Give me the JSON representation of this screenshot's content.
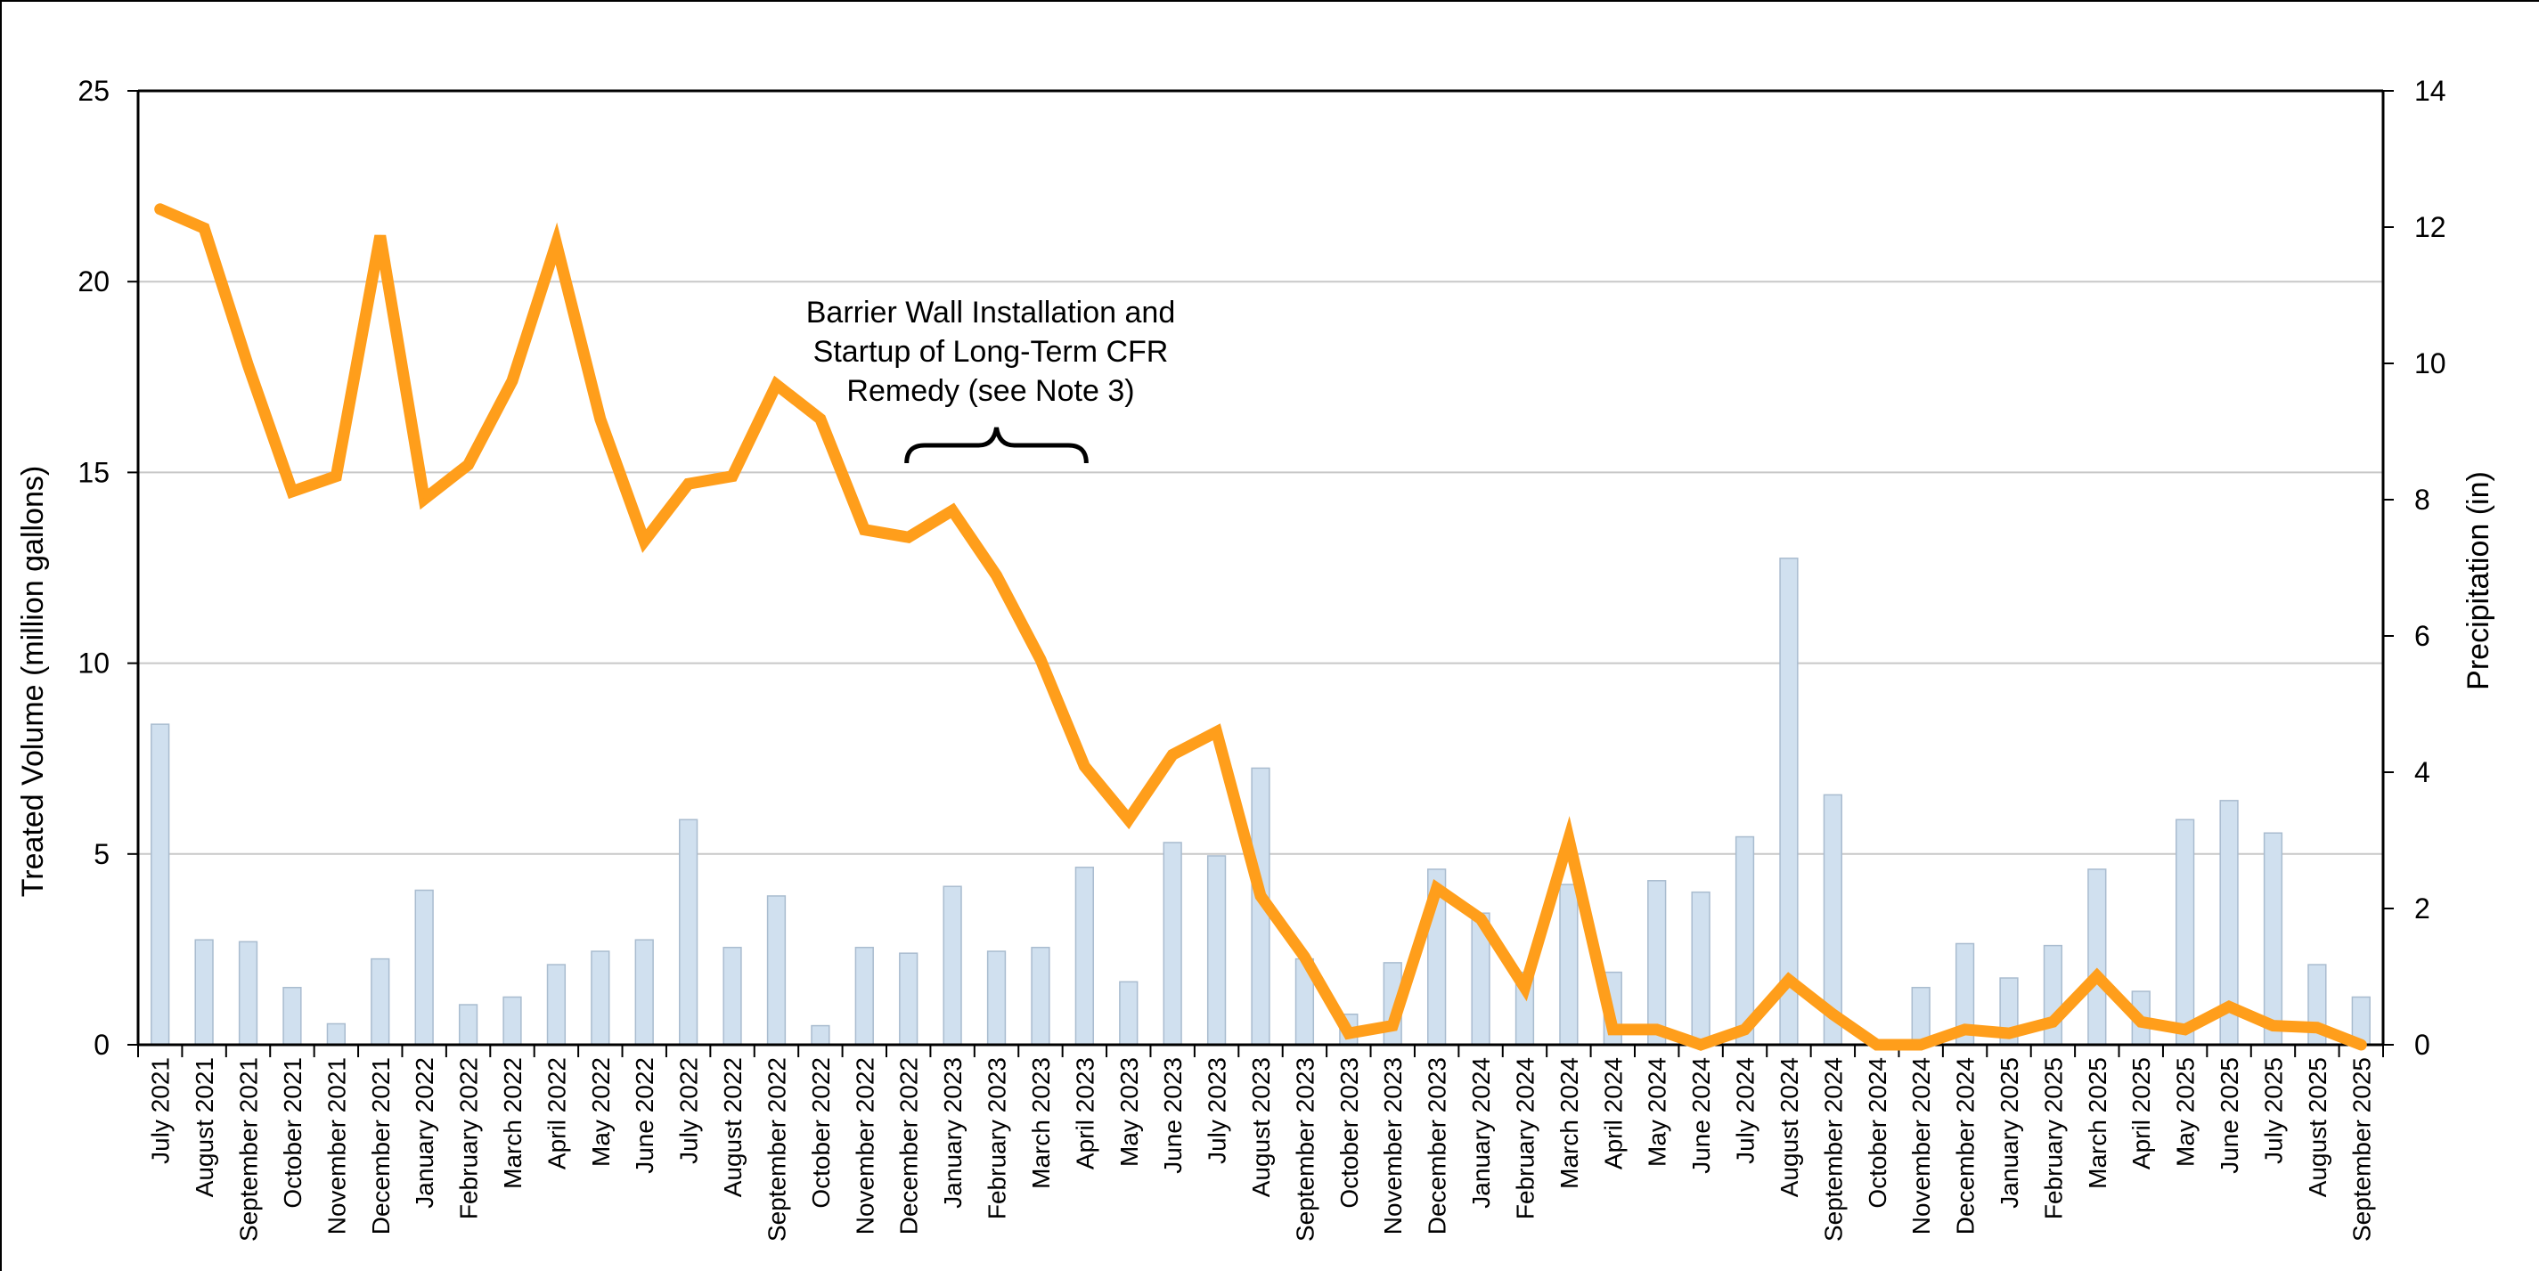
{
  "chart_data": {
    "type": "bar+line",
    "title": "",
    "ylabel": "Treated Volume (million gallons)",
    "y2label": "Precipitation (in)",
    "ylim": [
      0,
      25
    ],
    "y2lim": [
      0,
      14
    ],
    "yticks": [
      "0",
      "5",
      "10",
      "15",
      "20",
      "25"
    ],
    "y2ticks": [
      "0",
      "2",
      "4",
      "6",
      "8",
      "10",
      "12",
      "14"
    ],
    "grid": true,
    "categories": [
      "July 2021",
      "August 2021",
      "September 2021",
      "October 2021",
      "November 2021",
      "December 2021",
      "January 2022",
      "February 2022",
      "March 2022",
      "April 2022",
      "May 2022",
      "June 2022",
      "July 2022",
      "August 2022",
      "September 2022",
      "October 2022",
      "November 2022",
      "December 2022",
      "January 2023",
      "February 2023",
      "March 2023",
      "April 2023",
      "May 2023",
      "June 2023",
      "July 2023",
      "August 2023",
      "September 2023",
      "October 2023",
      "November 2023",
      "December 2023",
      "January 2024",
      "February 2024",
      "March 2024",
      "April 2024",
      "May 2024",
      "June 2024",
      "July 2024",
      "August 2024",
      "September 2024",
      "October 2024",
      "November 2024",
      "December 2024",
      "January 2025",
      "February 2025",
      "March 2025",
      "April 2025",
      "May 2025",
      "June 2025",
      "July 2025",
      "August 2025",
      "September 2025"
    ],
    "series": [
      {
        "axis": "left",
        "chart": "bar",
        "color": "#d0e0ef",
        "values": [
          8.4,
          2.75,
          2.7,
          1.5,
          0.55,
          2.25,
          4.05,
          1.05,
          1.25,
          2.1,
          2.45,
          2.75,
          5.9,
          2.55,
          3.9,
          0.5,
          2.55,
          2.4,
          4.15,
          2.45,
          2.55,
          4.65,
          1.65,
          5.3,
          4.95,
          7.25,
          2.25,
          0.8,
          2.15,
          4.6,
          3.45,
          1.9,
          4.2,
          1.9,
          4.3,
          4.0,
          5.45,
          12.75,
          6.55,
          0.0,
          1.5,
          2.65,
          1.75,
          2.6,
          4.6,
          1.4,
          5.9,
          6.4,
          5.55,
          2.1,
          1.25
        ]
      },
      {
        "axis": "left",
        "chart": "line",
        "color": "#ff9e1b",
        "values": [
          21.9,
          21.4,
          17.8,
          14.5,
          14.9,
          21.2,
          14.3,
          15.2,
          17.4,
          21.0,
          16.4,
          13.2,
          14.7,
          14.9,
          17.3,
          16.4,
          13.5,
          13.3,
          14.0,
          12.3,
          10.1,
          7.3,
          5.9,
          7.6,
          8.2,
          3.9,
          2.3,
          0.3,
          0.5,
          4.1,
          3.3,
          1.5,
          5.4,
          0.4,
          0.4,
          0.0,
          0.4,
          1.7,
          0.8,
          0.0,
          0.0,
          0.4,
          0.3,
          0.6,
          1.8,
          0.6,
          0.4,
          1.0,
          0.5,
          0.45,
          0.0
        ]
      }
    ],
    "annotations": [
      {
        "lines": [
          "Barrier Wall Installation and",
          "Startup of Long-Term CFR",
          "Remedy (see Note 3)"
        ],
        "bracket_from": "December 2022",
        "bracket_to": "April 2023"
      }
    ]
  }
}
